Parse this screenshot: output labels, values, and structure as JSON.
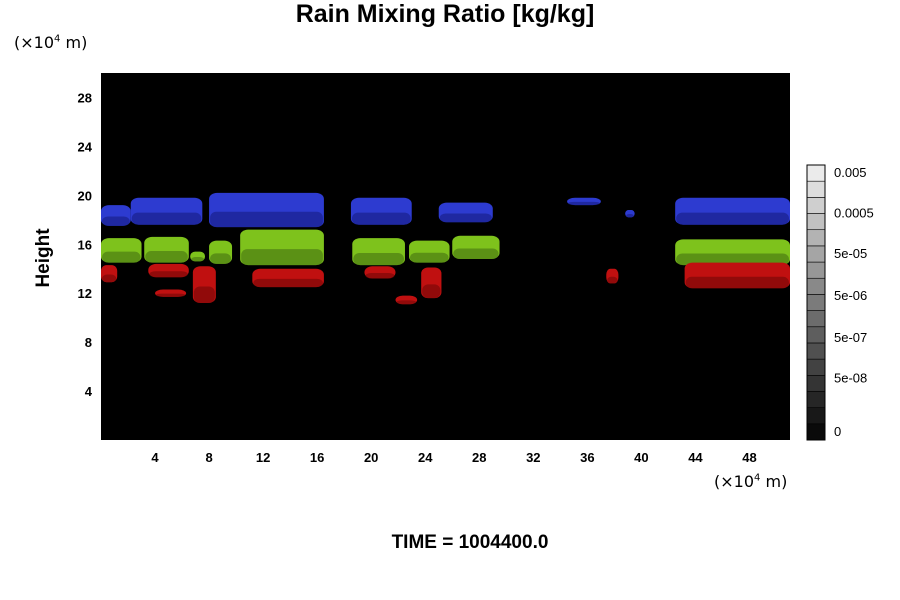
{
  "chart_data": {
    "type": "heatmap",
    "title": "Rain Mixing Ratio [kg/kg]",
    "ylabel": "Height",
    "xlabel": "",
    "x_unit_prefix": "(×10",
    "x_unit_exp": "4",
    "x_unit_suffix": " m)",
    "y_unit_prefix": "(×10",
    "y_unit_exp": "4",
    "y_unit_suffix": " m)",
    "xlim": [
      0,
      51
    ],
    "ylim": [
      0,
      30
    ],
    "x_ticks": [
      "4",
      "8",
      "12",
      "16",
      "20",
      "24",
      "28",
      "32",
      "36",
      "40",
      "44",
      "48"
    ],
    "x_tick_values": [
      4,
      8,
      12,
      16,
      20,
      24,
      28,
      32,
      36,
      40,
      44,
      48
    ],
    "y_ticks": [
      "4",
      "8",
      "12",
      "16",
      "20",
      "24",
      "28"
    ],
    "y_tick_values": [
      4,
      8,
      12,
      16,
      20,
      24,
      28
    ],
    "background_color": "#000000",
    "colorbar": {
      "levels": 17,
      "labels": [
        "0.005",
        "0.0005",
        "5e-05",
        "5e-06",
        "5e-07",
        "5e-08",
        "0"
      ],
      "label_levels": [
        16,
        13.5,
        11,
        8.4,
        5.8,
        3.3,
        0
      ]
    },
    "bands": [
      {
        "name": "blue",
        "color": "#2d3bd0",
        "shade": "#141a7a",
        "segments": [
          [
            0,
            2.2,
            17.5,
            19.2
          ],
          [
            2.2,
            7.5,
            17.6,
            19.8
          ],
          [
            8,
            16.5,
            17.4,
            20.2
          ],
          [
            18.5,
            23,
            17.6,
            19.8
          ],
          [
            25,
            29,
            17.8,
            19.4
          ],
          [
            34.5,
            37,
            19.2,
            19.8
          ],
          [
            38.8,
            39.5,
            18.2,
            18.8
          ],
          [
            42.5,
            51,
            17.6,
            19.8
          ]
        ]
      },
      {
        "name": "green",
        "color": "#7ec21c",
        "shade": "#3e6a10",
        "segments": [
          [
            0,
            3,
            14.5,
            16.5
          ],
          [
            3.2,
            6.5,
            14.5,
            16.6
          ],
          [
            6.6,
            7.7,
            14.6,
            15.4
          ],
          [
            8,
            9.7,
            14.4,
            16.3
          ],
          [
            10.3,
            16.5,
            14.3,
            17.2
          ],
          [
            18.6,
            22.5,
            14.3,
            16.5
          ],
          [
            22.8,
            25.8,
            14.5,
            16.3
          ],
          [
            26,
            29.5,
            14.8,
            16.7
          ],
          [
            42.5,
            51,
            14.3,
            16.4
          ]
        ]
      },
      {
        "name": "red",
        "color": "#c01010",
        "shade": "#6a0606",
        "segments": [
          [
            0,
            1.2,
            12.9,
            14.3
          ],
          [
            3.5,
            6.5,
            13.3,
            14.4
          ],
          [
            6.8,
            8.5,
            11.2,
            14.2
          ],
          [
            11.2,
            16.5,
            12.5,
            14.0
          ],
          [
            19.5,
            21.8,
            13.2,
            14.2
          ],
          [
            23.7,
            25.2,
            11.6,
            14.1
          ],
          [
            37.4,
            38.3,
            12.8,
            14.0
          ],
          [
            43.2,
            51,
            12.4,
            14.5
          ],
          [
            4,
            6.3,
            11.7,
            12.3
          ],
          [
            21.8,
            23.4,
            11.1,
            11.8
          ]
        ]
      }
    ]
  },
  "footer": {
    "time": "TIME = 1004400.0"
  }
}
